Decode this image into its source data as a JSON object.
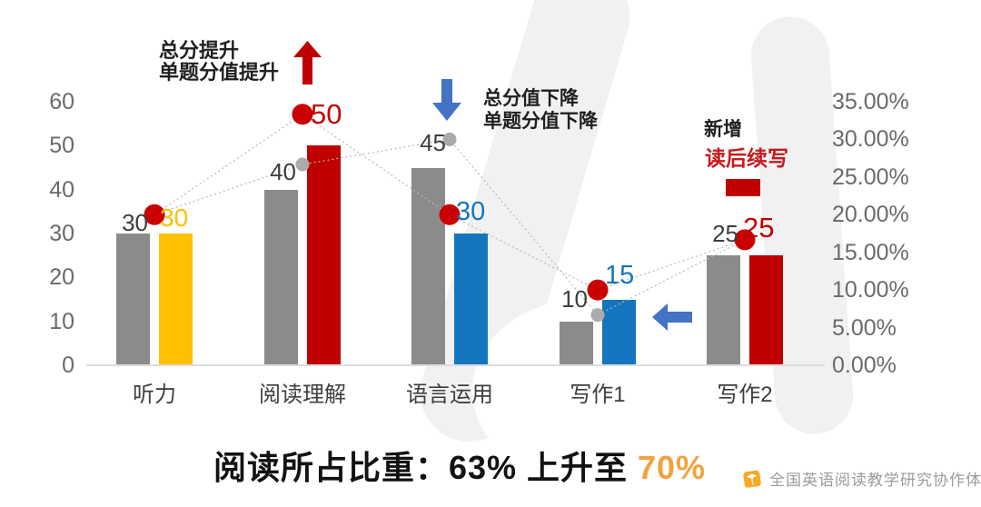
{
  "annotations": {
    "increase": {
      "line1": "总分提升",
      "line2": "单题分值提升"
    },
    "decrease": {
      "line1": "总分值下降",
      "line2": "单题分值下降"
    },
    "addition": {
      "label": "新增",
      "name": "读后续写"
    }
  },
  "footer": {
    "prefix": "阅读所占比重：63%  上升至 ",
    "highlight": "70%"
  },
  "logo": {
    "text": "全国英语阅读教学研究协作体"
  },
  "colors": {
    "old_bar": "#8B8B8B",
    "new_bar_red": "#C00000",
    "new_bar_yellow": "#FFC000",
    "new_bar_blue": "#1476BE",
    "arrow_blue": "#4472C4",
    "arrow_red": "#C00000",
    "old_dot": "#ABABAB",
    "new_dot": "#CB0000",
    "highlight_orange": "#F0A33F"
  },
  "chart_data": {
    "type": "bar+line dual-axis combo",
    "categories": [
      "听力",
      "阅读理解",
      "语言运用",
      "写作1",
      "写作2"
    ],
    "series": [
      {
        "name": "old-score-bars",
        "type": "bar",
        "axis": "left",
        "color": "#8B8B8B",
        "values": [
          30,
          40,
          45,
          10,
          25
        ]
      },
      {
        "name": "new-score-bars",
        "type": "bar",
        "axis": "left",
        "colors": [
          "#FFC000",
          "#C00000",
          "#1476BE",
          "#1476BE",
          "#C00000"
        ],
        "values": [
          30,
          50,
          30,
          15,
          25
        ]
      },
      {
        "name": "old-share-line",
        "type": "line",
        "axis": "right",
        "color": "#ABABAB",
        "values": [
          20,
          26.67,
          30,
          6.67,
          16.67
        ]
      },
      {
        "name": "new-share-line",
        "type": "line",
        "axis": "right",
        "color": "#CB0000",
        "values": [
          20,
          33.33,
          20,
          10,
          16.67
        ]
      }
    ],
    "bar_labels_old": [
      "30",
      "40",
      "45",
      "10",
      "25"
    ],
    "bar_labels_new": [
      "30",
      "50",
      "30",
      "15",
      "25"
    ],
    "left_axis": {
      "min": 0,
      "max": 60,
      "ticks": [
        0,
        10,
        20,
        30,
        40,
        50,
        60
      ],
      "tick_labels": [
        "0",
        "10",
        "20",
        "30",
        "40",
        "50",
        "60"
      ]
    },
    "right_axis": {
      "min": 0,
      "max": 35,
      "ticks": [
        0,
        5,
        10,
        15,
        20,
        25,
        30,
        35
      ],
      "tick_labels": [
        "0.00%",
        "5.00%",
        "10.00%",
        "15.00%",
        "20.00%",
        "25.00%",
        "30.00%",
        "35.00%"
      ]
    },
    "grid": false,
    "legend": false
  }
}
